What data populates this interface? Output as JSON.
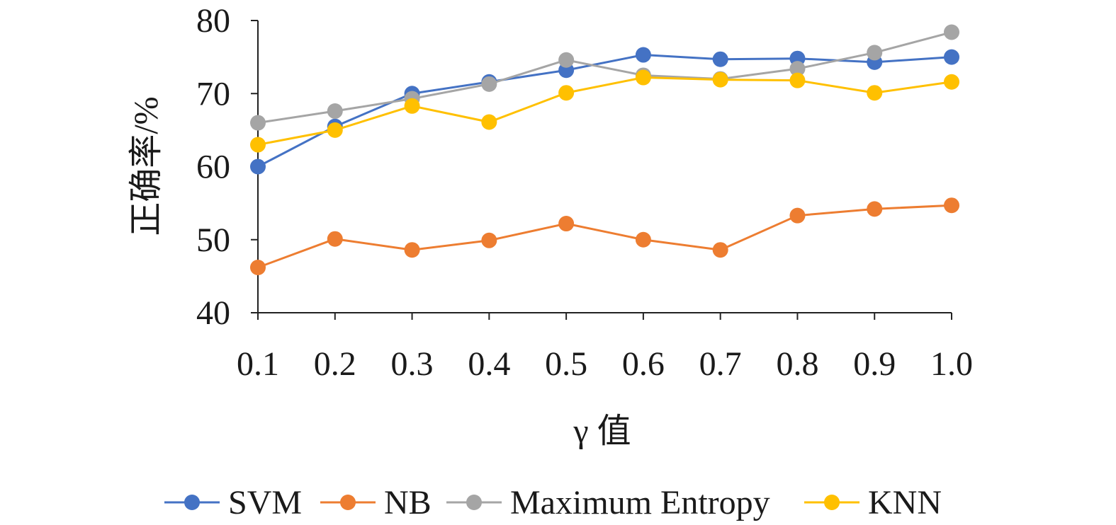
{
  "chart_data": {
    "type": "line",
    "title": "",
    "xlabel": "γ 值",
    "ylabel": "正确率/%",
    "x": [
      "0.1",
      "0.2",
      "0.3",
      "0.4",
      "0.5",
      "0.6",
      "0.7",
      "0.8",
      "0.9",
      "1.0"
    ],
    "yticks": [
      "40",
      "50",
      "60",
      "70",
      "80"
    ],
    "ylim": [
      40,
      80
    ],
    "grid": false,
    "legend_position": "bottom",
    "series": [
      {
        "name": "SVM",
        "color": "#4472C4",
        "values": [
          60.0,
          65.5,
          70.0,
          71.6,
          73.2,
          75.3,
          74.7,
          74.8,
          74.3,
          75.0
        ]
      },
      {
        "name": "NB",
        "color": "#ED7D31",
        "values": [
          46.2,
          50.1,
          48.6,
          49.9,
          52.2,
          50.0,
          48.6,
          53.3,
          54.2,
          54.7
        ]
      },
      {
        "name": "Maximum Entropy",
        "color": "#A5A5A5",
        "values": [
          66.0,
          67.6,
          69.3,
          71.3,
          74.6,
          72.5,
          72.0,
          73.4,
          75.6,
          78.4
        ]
      },
      {
        "name": "KNN",
        "color": "#FFC000",
        "values": [
          63.0,
          65.0,
          68.3,
          66.1,
          70.1,
          72.2,
          71.9,
          71.8,
          70.1,
          71.6
        ]
      }
    ]
  }
}
